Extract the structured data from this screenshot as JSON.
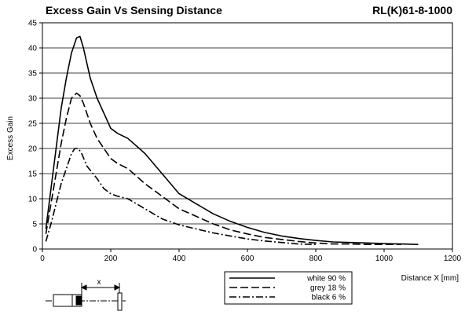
{
  "chart_data": {
    "type": "line",
    "title": "Excess Gain Vs Sensing Distance",
    "model": "RL(K)61-8-1000",
    "xlabel": "Distance X [mm]",
    "ylabel": "Excess Gain",
    "xlim": [
      0,
      1200
    ],
    "ylim": [
      0,
      45
    ],
    "xticks": [
      0,
      200,
      400,
      600,
      800,
      1000,
      1200
    ],
    "yticks": [
      0,
      5,
      10,
      15,
      20,
      25,
      30,
      35,
      40,
      45
    ],
    "grid": "horizontal",
    "legend_position": "bottom-center",
    "series": [
      {
        "name": "white 90 %",
        "style": "solid",
        "points": [
          [
            10,
            4
          ],
          [
            25,
            12
          ],
          [
            40,
            20
          ],
          [
            55,
            28
          ],
          [
            70,
            34
          ],
          [
            85,
            39
          ],
          [
            100,
            42
          ],
          [
            110,
            42.3
          ],
          [
            120,
            40
          ],
          [
            140,
            34
          ],
          [
            160,
            30
          ],
          [
            180,
            27
          ],
          [
            200,
            24
          ],
          [
            220,
            23
          ],
          [
            250,
            22
          ],
          [
            300,
            19
          ],
          [
            350,
            15
          ],
          [
            400,
            11
          ],
          [
            450,
            9
          ],
          [
            500,
            7
          ],
          [
            550,
            5.5
          ],
          [
            600,
            4.3
          ],
          [
            650,
            3.3
          ],
          [
            700,
            2.6
          ],
          [
            750,
            2.1
          ],
          [
            800,
            1.7
          ],
          [
            850,
            1.4
          ],
          [
            900,
            1.3
          ],
          [
            950,
            1.2
          ],
          [
            1000,
            1.1
          ],
          [
            1050,
            1.0
          ],
          [
            1100,
            0.9
          ]
        ]
      },
      {
        "name": "grey 18 %",
        "style": "dashed",
        "points": [
          [
            10,
            3
          ],
          [
            25,
            9
          ],
          [
            40,
            15
          ],
          [
            55,
            21
          ],
          [
            70,
            26
          ],
          [
            85,
            30
          ],
          [
            100,
            31
          ],
          [
            110,
            30.5
          ],
          [
            120,
            29
          ],
          [
            140,
            25
          ],
          [
            160,
            22
          ],
          [
            180,
            20
          ],
          [
            200,
            18
          ],
          [
            220,
            17
          ],
          [
            250,
            16
          ],
          [
            300,
            13
          ],
          [
            350,
            10.5
          ],
          [
            400,
            8
          ],
          [
            450,
            6.5
          ],
          [
            500,
            5
          ],
          [
            550,
            3.8
          ],
          [
            600,
            3
          ],
          [
            650,
            2.3
          ],
          [
            700,
            1.9
          ],
          [
            750,
            1.5
          ],
          [
            800,
            1.2
          ],
          [
            850,
            1.0
          ],
          [
            900,
            1.0
          ],
          [
            950,
            0.9
          ],
          [
            1000,
            0.9
          ],
          [
            1050,
            0.9
          ]
        ]
      },
      {
        "name": "black 6 %",
        "style": "dash-dot",
        "points": [
          [
            10,
            1.5
          ],
          [
            25,
            5
          ],
          [
            40,
            9
          ],
          [
            55,
            13
          ],
          [
            70,
            16
          ],
          [
            85,
            19
          ],
          [
            95,
            20
          ],
          [
            105,
            20
          ],
          [
            115,
            19
          ],
          [
            130,
            16.5
          ],
          [
            160,
            14
          ],
          [
            180,
            12
          ],
          [
            200,
            11
          ],
          [
            220,
            10.5
          ],
          [
            250,
            10
          ],
          [
            300,
            8
          ],
          [
            350,
            6
          ],
          [
            400,
            4.8
          ],
          [
            450,
            4
          ],
          [
            500,
            3.2
          ],
          [
            550,
            2.6
          ],
          [
            600,
            2
          ],
          [
            650,
            1.6
          ],
          [
            700,
            1.3
          ],
          [
            750,
            1.0
          ],
          [
            800,
            0.9
          ]
        ]
      }
    ]
  },
  "diagram": {
    "x_label": "x"
  }
}
